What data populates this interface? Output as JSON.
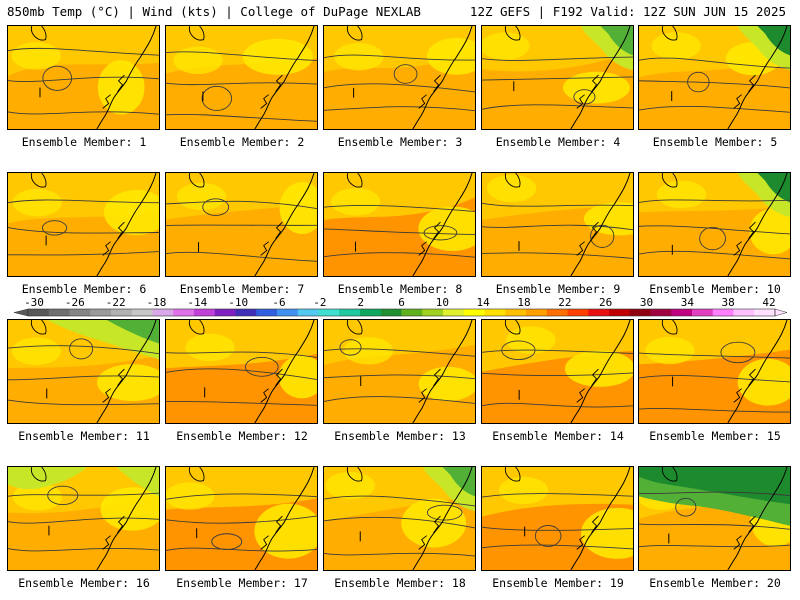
{
  "header": {
    "left": "850mb Temp (°C) | Wind (kts) | College of DuPage NEXLAB",
    "right": "12Z GEFS | F192 Valid: 12Z SUN JUN 15 2025"
  },
  "panel_prefix": "Ensemble Member:",
  "members": [
    {
      "num": "1",
      "style": "warm"
    },
    {
      "num": "2",
      "style": "warm"
    },
    {
      "num": "3",
      "style": "warm"
    },
    {
      "num": "4",
      "style": "green-ne"
    },
    {
      "num": "5",
      "style": "green-ne-strong"
    },
    {
      "num": "6",
      "style": "warm"
    },
    {
      "num": "7",
      "style": "warm"
    },
    {
      "num": "8",
      "style": "hot"
    },
    {
      "num": "9",
      "style": "warm"
    },
    {
      "num": "10",
      "style": "green-ne-strong"
    },
    {
      "num": "11",
      "style": "green-n"
    },
    {
      "num": "12",
      "style": "hot"
    },
    {
      "num": "13",
      "style": "warm"
    },
    {
      "num": "14",
      "style": "hot"
    },
    {
      "num": "15",
      "style": "hot"
    },
    {
      "num": "16",
      "style": "green-nw"
    },
    {
      "num": "17",
      "style": "hot"
    },
    {
      "num": "18",
      "style": "green-ne"
    },
    {
      "num": "19",
      "style": "hot"
    },
    {
      "num": "20",
      "style": "green-strong"
    }
  ],
  "colorbar": {
    "labels": [
      "-30",
      "-26",
      "-22",
      "-18",
      "-14",
      "-10",
      "-6",
      "-2",
      "2",
      "6",
      "10",
      "14",
      "18",
      "22",
      "26",
      "30",
      "34",
      "38",
      "42"
    ],
    "colors": [
      "#595959",
      "#6f6f6f",
      "#858585",
      "#9b9b9b",
      "#b1b1b1",
      "#c7c7c7",
      "#d8a8e8",
      "#e070e8",
      "#c040d8",
      "#8020c0",
      "#4030b8",
      "#3060e0",
      "#4090f0",
      "#50c8f0",
      "#40e0d0",
      "#20c8a0",
      "#10a860",
      "#209030",
      "#60b020",
      "#a0d020",
      "#e0f030",
      "#ffff00",
      "#ffe000",
      "#ffc000",
      "#ffa000",
      "#ff7000",
      "#ff4000",
      "#e81010",
      "#c00000",
      "#900010",
      "#a00040",
      "#c00080",
      "#e040c0",
      "#ff80ff",
      "#ffc0ff",
      "#ffe0ff"
    ]
  },
  "palette": {
    "yellow": "#ffe800",
    "gold": "#ffc800",
    "orange": "#ffa800",
    "deep_orange": "#ff8a00",
    "lime": "#c8e628",
    "green": "#52b036",
    "dark_green": "#1e8a2e"
  }
}
